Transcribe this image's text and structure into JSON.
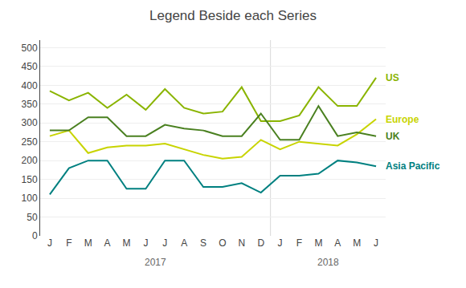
{
  "chart_data": {
    "type": "line",
    "title": "Legend Beside each Series",
    "categories": [
      "J",
      "F",
      "M",
      "A",
      "M",
      "J",
      "J",
      "A",
      "S",
      "O",
      "N",
      "D",
      "J",
      "F",
      "M",
      "A",
      "M",
      "J"
    ],
    "series": [
      {
        "name": "US",
        "color": "#8ab400",
        "values": [
          385,
          360,
          380,
          340,
          375,
          335,
          390,
          340,
          325,
          330,
          395,
          305,
          305,
          320,
          395,
          345,
          345,
          420
        ]
      },
      {
        "name": "Europe",
        "color": "#c8d400",
        "values": [
          265,
          280,
          220,
          235,
          240,
          240,
          245,
          230,
          215,
          205,
          210,
          255,
          230,
          250,
          245,
          240,
          270,
          310
        ]
      },
      {
        "name": "UK",
        "color": "#4a8020",
        "values": [
          280,
          280,
          315,
          315,
          265,
          265,
          295,
          285,
          280,
          265,
          265,
          325,
          255,
          255,
          345,
          265,
          275,
          265
        ]
      },
      {
        "name": "Asia Pacific",
        "color": "#008080",
        "values": [
          110,
          180,
          200,
          200,
          125,
          125,
          200,
          200,
          130,
          130,
          140,
          115,
          160,
          160,
          165,
          200,
          195,
          185
        ]
      }
    ],
    "ylim": [
      0,
      520
    ],
    "yticks": [
      0,
      50,
      100,
      150,
      200,
      250,
      300,
      350,
      400,
      450,
      500
    ],
    "grid": true,
    "annotations": [
      "2017",
      "2018"
    ]
  }
}
